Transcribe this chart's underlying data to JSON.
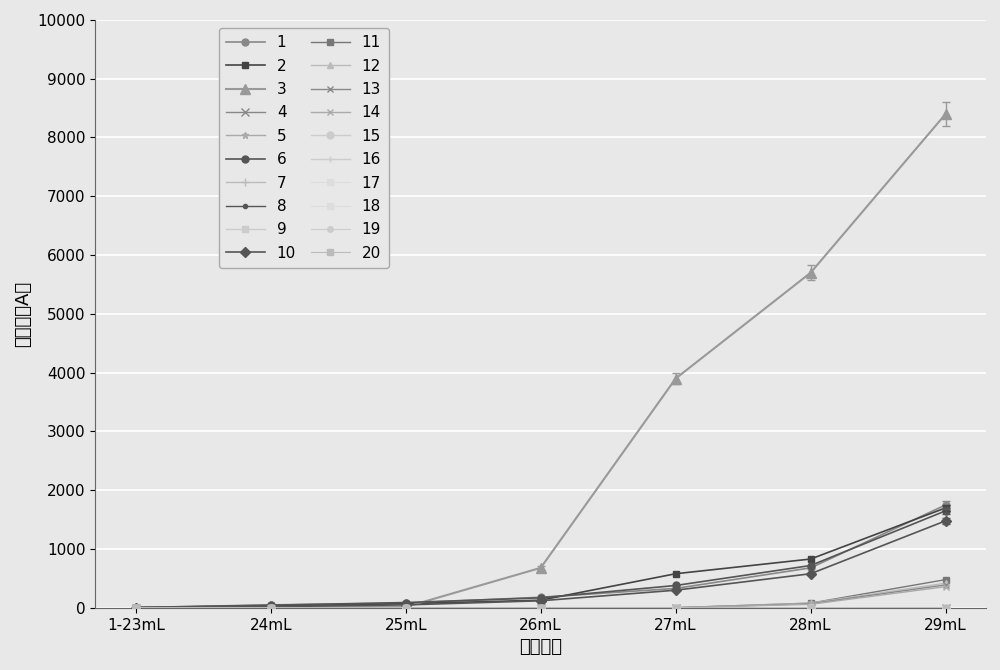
{
  "x_labels": [
    "1-23mL",
    "24mL",
    "25mL",
    "26mL",
    "27mL",
    "28mL",
    "29mL"
  ],
  "x_positions": [
    0,
    1,
    2,
    3,
    4,
    5,
    6
  ],
  "ylabel": "峰面积（A）",
  "xlabel": "上样体积",
  "ylim": [
    0,
    10000
  ],
  "yticks": [
    0,
    1000,
    2000,
    3000,
    4000,
    5000,
    6000,
    7000,
    8000,
    9000,
    10000
  ],
  "series": [
    {
      "label": "1",
      "marker": "o",
      "color": "#888888",
      "linestyle": "-",
      "linewidth": 1.2,
      "markersize": 5,
      "values": [
        5,
        50,
        80,
        180,
        330,
        680,
        1750
      ],
      "yerr": [
        0,
        0,
        0,
        0,
        0,
        0,
        60
      ]
    },
    {
      "label": "2",
      "marker": "s",
      "color": "#444444",
      "linestyle": "-",
      "linewidth": 1.2,
      "markersize": 5,
      "values": [
        5,
        35,
        70,
        130,
        580,
        830,
        1700
      ],
      "yerr": [
        0,
        0,
        0,
        0,
        0,
        0,
        50
      ]
    },
    {
      "label": "3",
      "marker": "^",
      "color": "#999999",
      "linestyle": "-",
      "linewidth": 1.5,
      "markersize": 7,
      "values": [
        5,
        10,
        15,
        680,
        3900,
        5700,
        8400
      ],
      "yerr": [
        0,
        0,
        0,
        40,
        100,
        130,
        200
      ]
    },
    {
      "label": "4",
      "marker": "x",
      "color": "#888888",
      "linestyle": "-",
      "linewidth": 1.0,
      "markersize": 6,
      "values": [
        2,
        2,
        2,
        2,
        2,
        2,
        2
      ],
      "yerr": [
        0,
        0,
        0,
        0,
        0,
        0,
        0
      ]
    },
    {
      "label": "5",
      "marker": "*",
      "color": "#aaaaaa",
      "linestyle": "-",
      "linewidth": 1.0,
      "markersize": 5,
      "values": [
        2,
        2,
        2,
        2,
        2,
        2,
        2
      ],
      "yerr": [
        0,
        0,
        0,
        0,
        0,
        0,
        0
      ]
    },
    {
      "label": "6",
      "marker": "o",
      "color": "#555555",
      "linestyle": "-",
      "linewidth": 1.2,
      "markersize": 5,
      "values": [
        5,
        45,
        90,
        170,
        380,
        720,
        1650
      ],
      "yerr": [
        0,
        0,
        0,
        0,
        0,
        0,
        50
      ]
    },
    {
      "label": "7",
      "marker": "+",
      "color": "#bbbbbb",
      "linestyle": "-",
      "linewidth": 1.0,
      "markersize": 6,
      "values": [
        2,
        2,
        2,
        2,
        2,
        2,
        2
      ],
      "yerr": [
        0,
        0,
        0,
        0,
        0,
        0,
        0
      ]
    },
    {
      "label": "8",
      "marker": ".",
      "color": "#555555",
      "linestyle": "-",
      "linewidth": 1.0,
      "markersize": 6,
      "values": [
        2,
        2,
        2,
        2,
        2,
        2,
        2
      ],
      "yerr": [
        0,
        0,
        0,
        0,
        0,
        0,
        0
      ]
    },
    {
      "label": "9",
      "marker": "s",
      "color": "#cccccc",
      "linestyle": "-",
      "linewidth": 1.0,
      "markersize": 5,
      "values": [
        2,
        2,
        2,
        2,
        2,
        2,
        2
      ],
      "yerr": [
        0,
        0,
        0,
        0,
        0,
        0,
        0
      ]
    },
    {
      "label": "10",
      "marker": "D",
      "color": "#555555",
      "linestyle": "-",
      "linewidth": 1.2,
      "markersize": 5,
      "values": [
        5,
        20,
        50,
        120,
        300,
        580,
        1480
      ],
      "yerr": [
        0,
        0,
        0,
        0,
        0,
        0,
        50
      ]
    },
    {
      "label": "11",
      "marker": "s",
      "color": "#777777",
      "linestyle": "-",
      "linewidth": 1.0,
      "markersize": 5,
      "values": [
        2,
        2,
        2,
        2,
        2,
        80,
        480
      ],
      "yerr": [
        0,
        0,
        0,
        0,
        0,
        0,
        0
      ]
    },
    {
      "label": "12",
      "marker": "^",
      "color": "#bbbbbb",
      "linestyle": "-",
      "linewidth": 1.0,
      "markersize": 5,
      "values": [
        2,
        2,
        2,
        2,
        2,
        80,
        420
      ],
      "yerr": [
        0,
        0,
        0,
        0,
        0,
        0,
        0
      ]
    },
    {
      "label": "13",
      "marker": "x",
      "color": "#888888",
      "linestyle": "-",
      "linewidth": 1.0,
      "markersize": 5,
      "values": [
        2,
        2,
        2,
        2,
        2,
        70,
        390
      ],
      "yerr": [
        0,
        0,
        0,
        0,
        0,
        0,
        0
      ]
    },
    {
      "label": "14",
      "marker": "x",
      "color": "#aaaaaa",
      "linestyle": "-",
      "linewidth": 1.0,
      "markersize": 5,
      "values": [
        2,
        2,
        2,
        2,
        2,
        60,
        360
      ],
      "yerr": [
        0,
        0,
        0,
        0,
        0,
        0,
        0
      ]
    },
    {
      "label": "15",
      "marker": "o",
      "color": "#cccccc",
      "linestyle": "-",
      "linewidth": 1.0,
      "markersize": 5,
      "values": [
        2,
        2,
        2,
        2,
        2,
        2,
        2
      ],
      "yerr": [
        0,
        0,
        0,
        0,
        0,
        0,
        0
      ]
    },
    {
      "label": "16",
      "marker": "+",
      "color": "#cccccc",
      "linestyle": "-",
      "linewidth": 1.0,
      "markersize": 5,
      "values": [
        2,
        2,
        2,
        2,
        2,
        2,
        2
      ],
      "yerr": [
        0,
        0,
        0,
        0,
        0,
        0,
        0
      ]
    },
    {
      "label": "17",
      "marker": "s",
      "color": "#dddddd",
      "linestyle": "-",
      "linewidth": 0.8,
      "markersize": 4,
      "values": [
        2,
        2,
        2,
        2,
        2,
        2,
        2
      ],
      "yerr": [
        0,
        0,
        0,
        0,
        0,
        0,
        0
      ]
    },
    {
      "label": "18",
      "marker": "s",
      "color": "#dddddd",
      "linestyle": "-",
      "linewidth": 0.8,
      "markersize": 4,
      "values": [
        2,
        2,
        2,
        2,
        2,
        2,
        2
      ],
      "yerr": [
        0,
        0,
        0,
        0,
        0,
        0,
        0
      ]
    },
    {
      "label": "19",
      "marker": "o",
      "color": "#cccccc",
      "linestyle": "-",
      "linewidth": 0.8,
      "markersize": 4,
      "values": [
        2,
        2,
        2,
        2,
        2,
        2,
        2
      ],
      "yerr": [
        0,
        0,
        0,
        0,
        0,
        0,
        0
      ]
    },
    {
      "label": "20",
      "marker": "s",
      "color": "#bbbbbb",
      "linestyle": "-",
      "linewidth": 0.8,
      "markersize": 4,
      "values": [
        2,
        2,
        2,
        2,
        2,
        2,
        2
      ],
      "yerr": [
        0,
        0,
        0,
        0,
        0,
        0,
        0
      ]
    }
  ],
  "background_color": "#e8e8e8",
  "plot_bg_color": "#e8e8e8",
  "grid_color": "#ffffff",
  "legend_fontsize": 11,
  "axis_fontsize": 13,
  "tick_fontsize": 11
}
